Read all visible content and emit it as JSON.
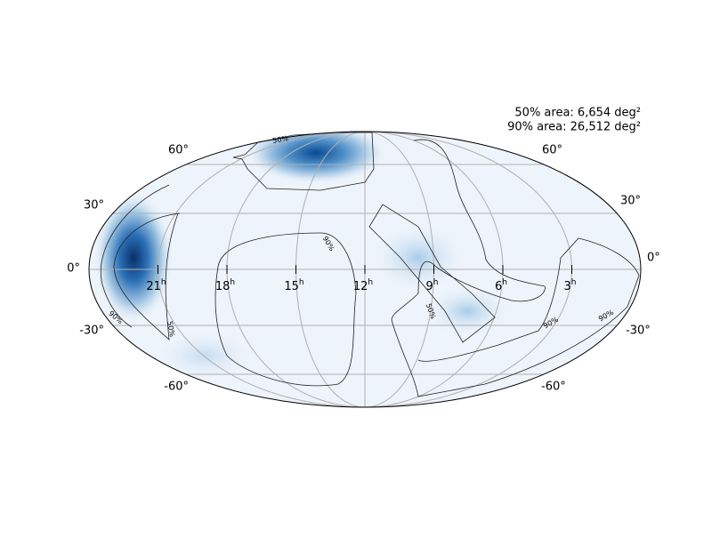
{
  "annotation": [
    "50% area: 6,654 deg²",
    "90% area: 26,512 deg²"
  ],
  "ra_labels": [
    {
      "hours": "21",
      "unit": "h"
    },
    {
      "hours": "18",
      "unit": "h"
    },
    {
      "hours": "15",
      "unit": "h"
    },
    {
      "hours": "12",
      "unit": "h"
    },
    {
      "hours": "9",
      "unit": "h"
    },
    {
      "hours": "6",
      "unit": "h"
    },
    {
      "hours": "3",
      "unit": "h"
    }
  ],
  "dec_labels_left": [
    "60°",
    "30°",
    "0°",
    "-30°",
    "-60°"
  ],
  "dec_labels_right": [
    "60°",
    "30°",
    "0°",
    "-30°",
    "-60°"
  ],
  "contour_labels": [
    "50%",
    "90%",
    "50%",
    "90%",
    "50%",
    "90%",
    "90%"
  ]
}
